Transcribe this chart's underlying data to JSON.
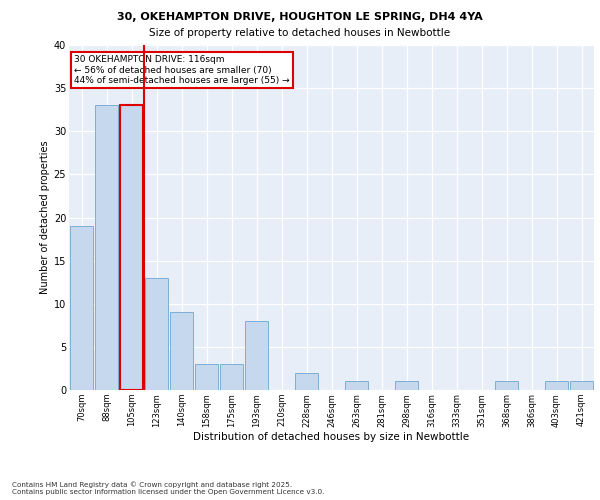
{
  "title_line1": "30, OKEHAMPTON DRIVE, HOUGHTON LE SPRING, DH4 4YA",
  "title_line2": "Size of property relative to detached houses in Newbottle",
  "xlabel": "Distribution of detached houses by size in Newbottle",
  "ylabel": "Number of detached properties",
  "categories": [
    "70sqm",
    "88sqm",
    "105sqm",
    "123sqm",
    "140sqm",
    "158sqm",
    "175sqm",
    "193sqm",
    "210sqm",
    "228sqm",
    "246sqm",
    "263sqm",
    "281sqm",
    "298sqm",
    "316sqm",
    "333sqm",
    "351sqm",
    "368sqm",
    "386sqm",
    "403sqm",
    "421sqm"
  ],
  "values": [
    19,
    33,
    33,
    13,
    9,
    3,
    3,
    8,
    0,
    2,
    0,
    1,
    0,
    1,
    0,
    0,
    0,
    1,
    0,
    1,
    1
  ],
  "bar_color": "#c5d8ed",
  "bar_edge_color": "#7bafd4",
  "highlight_bar_index": 2,
  "highlight_bar_edge_color": "#dd0000",
  "vline_color": "#dd0000",
  "ylim": [
    0,
    40
  ],
  "yticks": [
    0,
    5,
    10,
    15,
    20,
    25,
    30,
    35,
    40
  ],
  "background_color": "#e8eef8",
  "grid_color": "#ffffff",
  "annotation_text": "30 OKEHAMPTON DRIVE: 116sqm\n← 56% of detached houses are smaller (70)\n44% of semi-detached houses are larger (55) →",
  "annotation_box_color": "#ffffff",
  "annotation_box_edge_color": "#dd0000",
  "footnote": "Contains HM Land Registry data © Crown copyright and database right 2025.\nContains public sector information licensed under the Open Government Licence v3.0."
}
